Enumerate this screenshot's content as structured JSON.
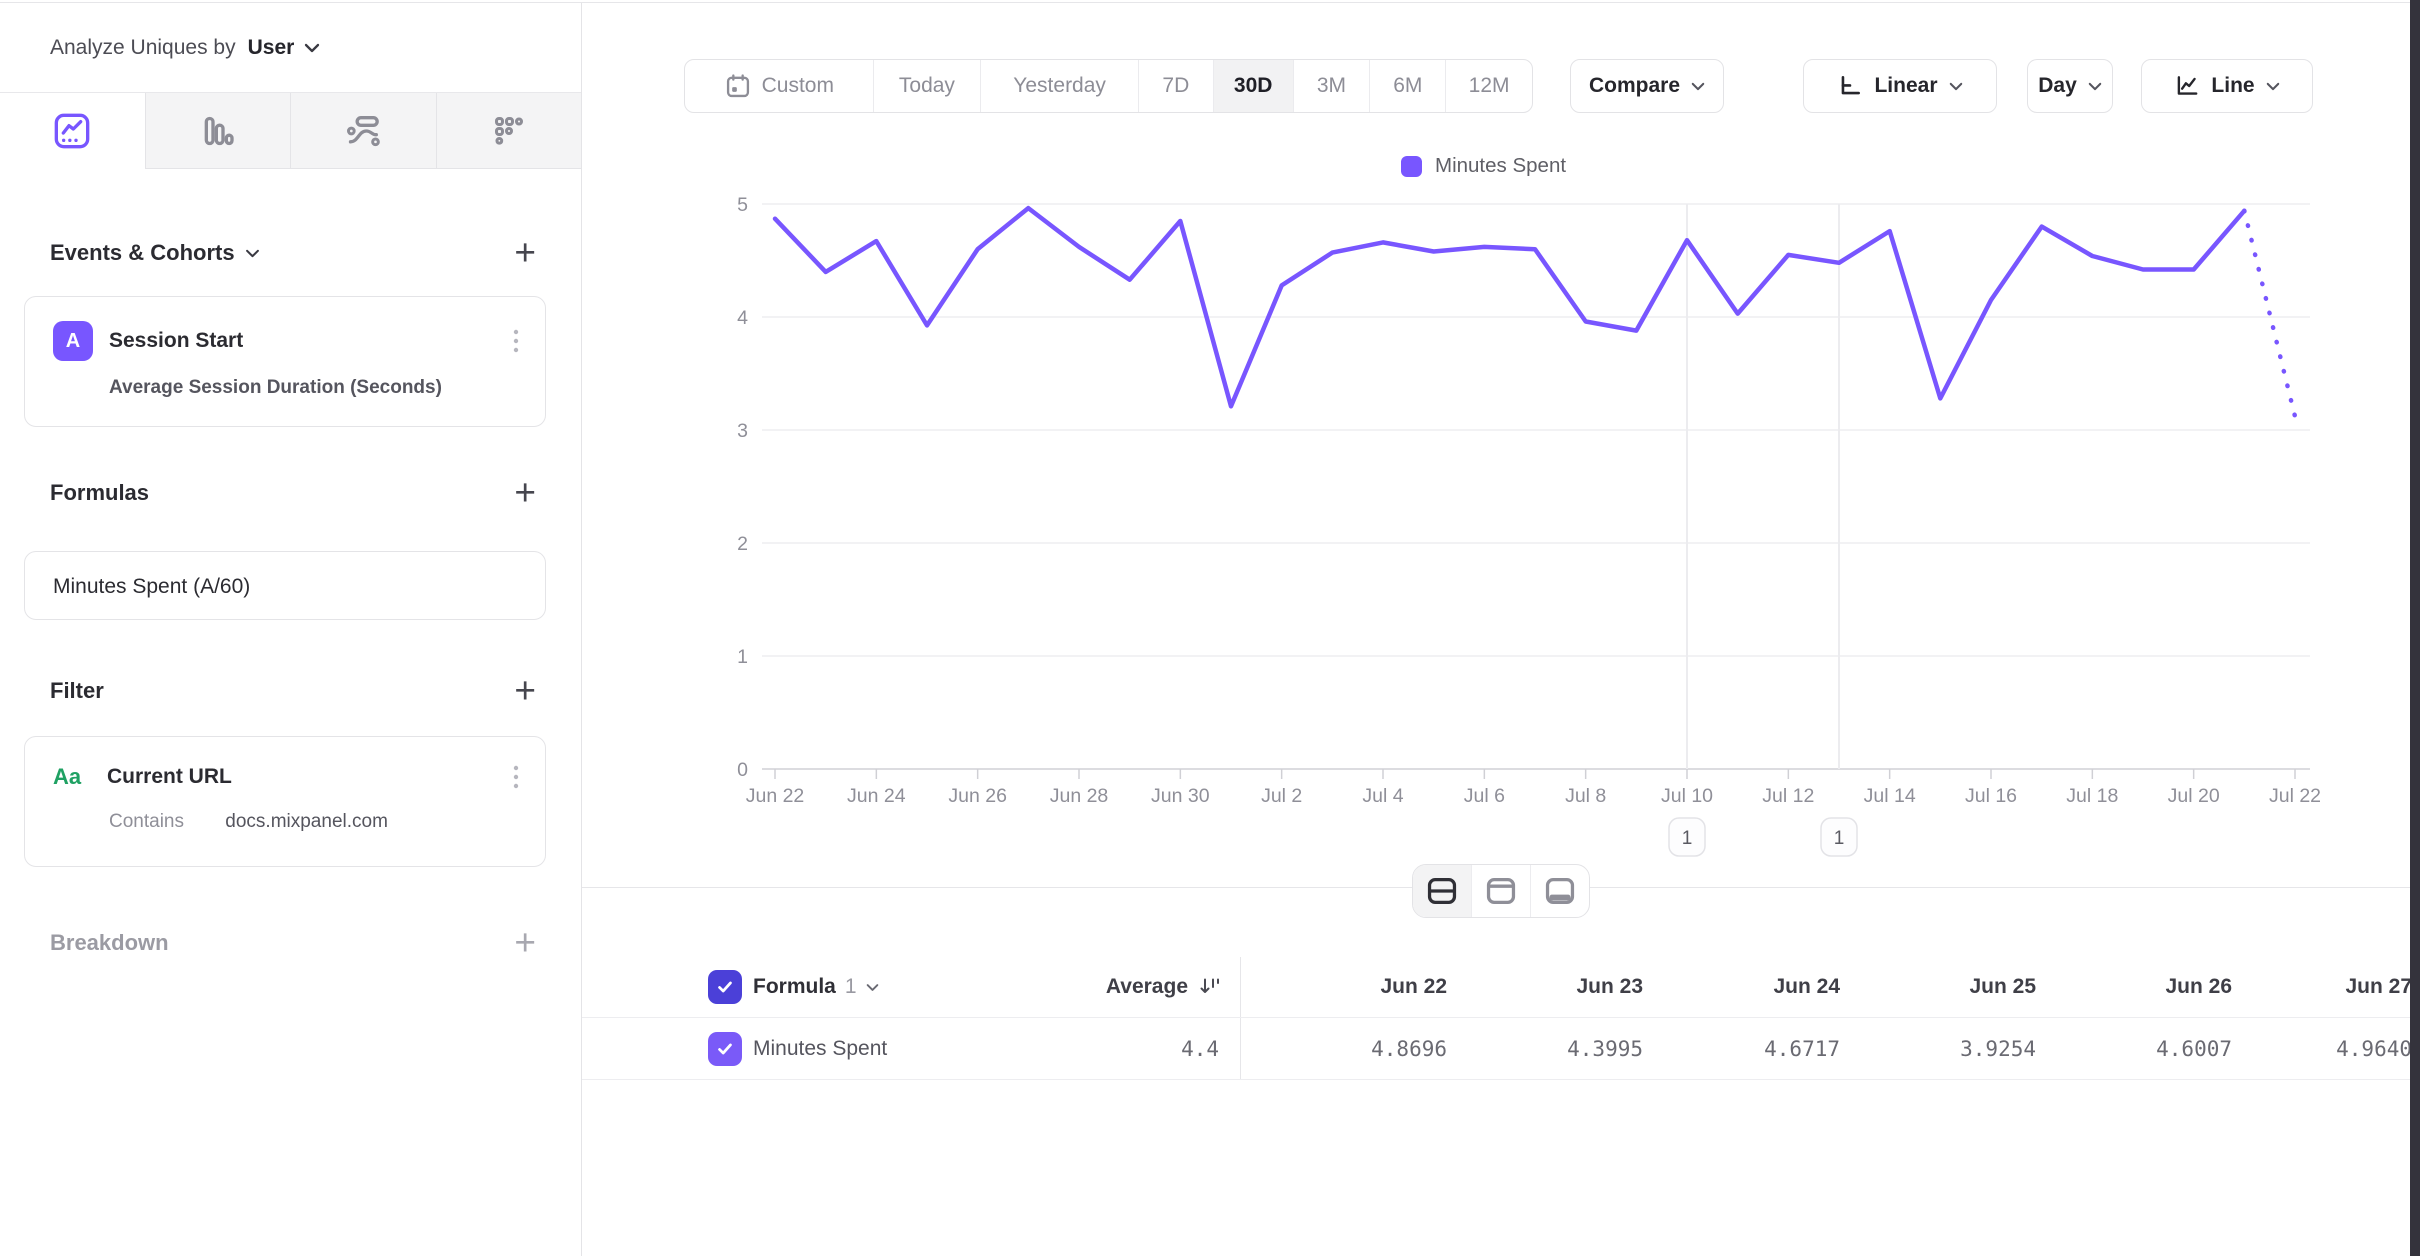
{
  "sidebar": {
    "analyze_label": "Analyze Uniques by",
    "analyze_value": "User",
    "tabs": [
      {
        "name": "insights-line-tab",
        "active": true
      },
      {
        "name": "bar-chart-tab",
        "active": false
      },
      {
        "name": "flow-tab",
        "active": false
      },
      {
        "name": "grid-tab",
        "active": false
      }
    ],
    "sections": {
      "events": {
        "title": "Events & Cohorts",
        "card": {
          "badge": "A",
          "title": "Session Start",
          "subtitle": "Average Session Duration (Seconds)"
        }
      },
      "formulas": {
        "title": "Formulas",
        "card": {
          "title": "Minutes Spent (A/60)"
        }
      },
      "filter": {
        "title": "Filter",
        "card": {
          "badge": "Aa",
          "title": "Current URL",
          "operator": "Contains",
          "value": "docs.mixpanel.com"
        }
      },
      "breakdown": {
        "title": "Breakdown"
      }
    }
  },
  "toolbar": {
    "date_ranges": [
      "Custom",
      "Today",
      "Yesterday",
      "7D",
      "30D",
      "3M",
      "6M",
      "12M"
    ],
    "range_widths": [
      188,
      108,
      158,
      75,
      80,
      77,
      76,
      87
    ],
    "selected_range": "30D",
    "compare_label": "Compare",
    "scale_label": "Linear",
    "interval_label": "Day",
    "chart_type_label": "Line"
  },
  "chart_data": {
    "type": "line",
    "legend_label": "Minutes Spent",
    "color": "#7856ff",
    "ylim": [
      0,
      5
    ],
    "yticks": [
      0,
      1,
      2,
      3,
      4,
      5
    ],
    "x_label_step": 2,
    "grid": "horizontal",
    "legend_position": "top",
    "last_segment_dotted": true,
    "x": [
      "Jun 22",
      "Jun 23",
      "Jun 24",
      "Jun 25",
      "Jun 26",
      "Jun 27",
      "Jun 28",
      "Jun 29",
      "Jun 30",
      "Jul 1",
      "Jul 2",
      "Jul 3",
      "Jul 4",
      "Jul 5",
      "Jul 6",
      "Jul 7",
      "Jul 8",
      "Jul 9",
      "Jul 10",
      "Jul 11",
      "Jul 12",
      "Jul 13",
      "Jul 14",
      "Jul 15",
      "Jul 16",
      "Jul 17",
      "Jul 18",
      "Jul 19",
      "Jul 20",
      "Jul 21",
      "Jul 22"
    ],
    "series": [
      {
        "name": "Minutes Spent",
        "values": [
          4.8696,
          4.3995,
          4.6717,
          3.9254,
          4.6007,
          4.964,
          4.62,
          4.33,
          4.85,
          3.21,
          4.28,
          4.57,
          4.66,
          4.58,
          4.62,
          4.6,
          3.96,
          3.88,
          4.68,
          4.03,
          4.55,
          4.48,
          4.76,
          3.28,
          4.15,
          4.8,
          4.54,
          4.42,
          4.42,
          4.94,
          3.12
        ]
      }
    ],
    "annotations": [
      {
        "date": "Jul 10",
        "label": "1"
      },
      {
        "date": "Jul 13",
        "label": "1"
      }
    ]
  },
  "table": {
    "group_label": "Formula",
    "group_number": "1",
    "avg_header": "Average",
    "columns": [
      "Jun 22",
      "Jun 23",
      "Jun 24",
      "Jun 25",
      "Jun 26",
      "Jun 27"
    ],
    "column_right_edges": [
      865,
      1061,
      1258,
      1454,
      1650,
      1830
    ],
    "row": {
      "label": "Minutes Spent",
      "average": "4.4",
      "values": [
        "4.8696",
        "4.3995",
        "4.6717",
        "3.9254",
        "4.6007",
        "4.9640"
      ]
    }
  },
  "colors": {
    "accent": "#7856ff",
    "header_checkbox": "#4b40d8",
    "row_checkbox": "#7a5af8",
    "filter_badge_green": "#1fa163"
  }
}
